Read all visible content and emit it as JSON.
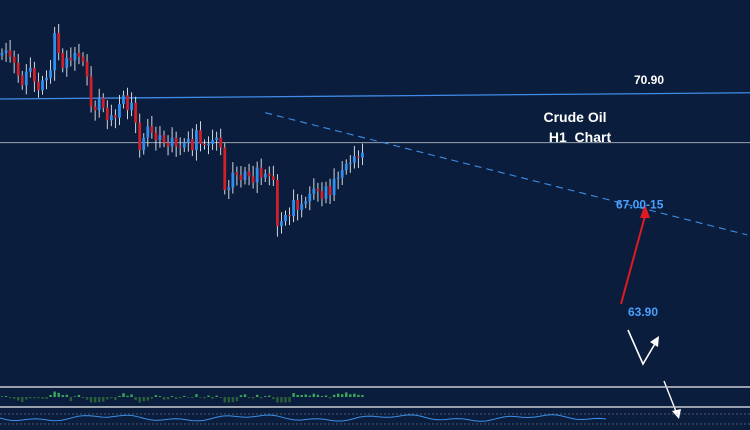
{
  "chart_data": {
    "type": "candlestick",
    "instrument": "Crude Oil",
    "timeframe": "H1  Chart",
    "ylim": [
      60.5,
      75.5
    ],
    "colors": {
      "background": "#0b1d3c",
      "bull": "#2f8ff0",
      "bear": "#d0202a",
      "wick": "#e6e9ef",
      "resistance": "#3f8be8",
      "trend": "#3d8ee6",
      "hline": "#9aa3ad",
      "target_up": "#e01a22",
      "path": "#ffffff",
      "label_target": "#ffffff",
      "label_support": "#4aa0ff",
      "histogram_pos": "#3aa85a",
      "histogram_neg": "#2a5f3a"
    },
    "levels": {
      "horizontal": 70.1,
      "resistance_start": 71.85,
      "resistance_end": 72.1
    },
    "trendline": {
      "start": [
        65,
        71.3
      ],
      "end": [
        184,
        66.4
      ]
    },
    "prices": [
      73.7,
      73.8,
      73.55,
      73.3,
      72.8,
      72.4,
      72.95,
      73.1,
      72.55,
      72.2,
      72.6,
      72.7,
      73.0,
      74.5,
      73.7,
      73.1,
      73.5,
      73.4,
      73.7,
      73.55,
      73.35,
      72.75,
      71.55,
      71.4,
      71.9,
      71.5,
      71.0,
      71.2,
      71.1,
      71.65,
      72.0,
      71.4,
      71.7,
      70.9,
      69.8,
      70.3,
      70.75,
      70.5,
      70.2,
      70.4,
      70.1,
      69.95,
      70.3,
      69.95,
      69.9,
      70.1,
      70.25,
      69.8,
      70.6,
      70.05,
      70.0,
      70.05,
      70.2,
      70.3,
      69.9,
      68.2,
      68.3,
      68.9,
      68.8,
      68.6,
      68.95,
      68.75,
      68.5,
      69.1,
      68.7,
      68.85,
      68.75,
      68.6,
      66.75,
      66.95,
      67.2,
      67.15,
      67.8,
      67.4,
      67.65,
      67.75,
      68.05,
      68.25,
      68.15,
      67.85,
      68.35,
      68.0,
      68.65,
      68.7,
      69.0,
      69.25,
      69.3,
      69.55,
      69.5,
      69.7
    ],
    "annotations": [
      {
        "text": "70.90",
        "price": 72.45,
        "role": "target"
      },
      {
        "text": "67.00-15",
        "price": 67.45,
        "role": "support"
      },
      {
        "text": "63.90",
        "price": 63.15,
        "role": "support"
      }
    ],
    "grid": false,
    "legend": "none"
  }
}
